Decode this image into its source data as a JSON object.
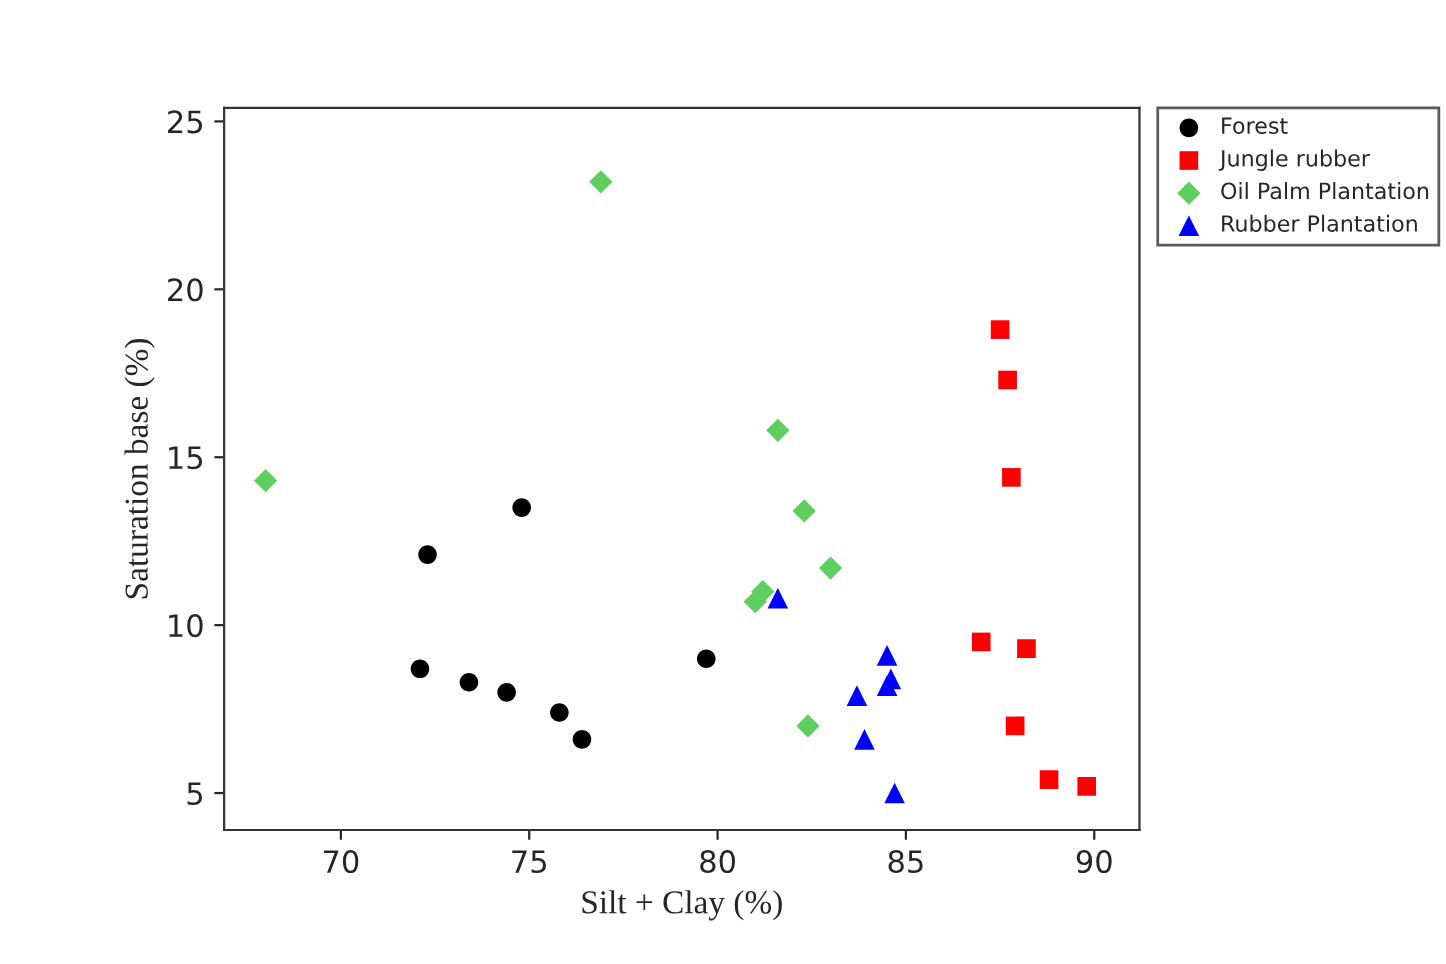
{
  "chart_data": {
    "type": "scatter",
    "xlabel": "Silt + Clay (%)",
    "ylabel": "Saturation base (%)",
    "xlim": [
      66.9,
      91.2
    ],
    "ylim": [
      3.9,
      25.4
    ],
    "xticks": [
      70,
      75,
      80,
      85,
      90
    ],
    "yticks": [
      5,
      10,
      15,
      20,
      25
    ],
    "grid": false,
    "legend": "top right",
    "series": [
      {
        "name": "Forest",
        "color": "#000000",
        "marker": "circle",
        "x": [
          72.1,
          72.3,
          73.4,
          74.4,
          74.8,
          75.8,
          76.4,
          79.7
        ],
        "values": [
          8.7,
          12.1,
          8.3,
          8.0,
          13.5,
          7.4,
          6.6,
          9.0
        ]
      },
      {
        "name": "Jungle rubber",
        "color": "#ff0000",
        "marker": "square",
        "x": [
          87.5,
          87.7,
          87.8,
          87.0,
          88.2,
          87.9,
          88.8,
          89.8
        ],
        "values": [
          18.8,
          17.3,
          14.4,
          9.5,
          9.3,
          7.0,
          5.4,
          5.2
        ]
      },
      {
        "name": "Oil Palm Plantation",
        "color": "#5ecf5e",
        "marker": "diamond",
        "x": [
          68.0,
          76.9,
          81.6,
          82.3,
          83.0,
          81.0,
          81.2,
          82.4
        ],
        "values": [
          14.3,
          23.2,
          15.8,
          13.4,
          11.7,
          10.7,
          11.0,
          7.0
        ]
      },
      {
        "name": "Rubber Plantation",
        "color": "#0000ff",
        "marker": "triangle",
        "x": [
          81.6,
          84.5,
          84.6,
          84.5,
          83.7,
          83.9,
          84.7
        ],
        "values": [
          10.8,
          9.1,
          8.4,
          8.2,
          7.9,
          6.6,
          5.0
        ]
      }
    ]
  }
}
